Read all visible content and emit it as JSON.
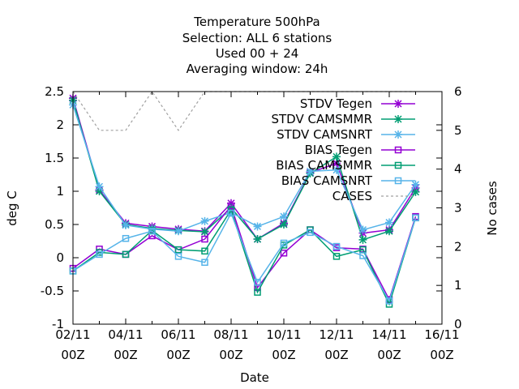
{
  "chart_data": {
    "type": "line",
    "title_lines": [
      "Temperature 500hPa",
      "Selection: ALL      6 stations",
      "Used  00 + 24",
      "Averaging window: 24h"
    ],
    "xlabel": "Date",
    "ylabel": "deg C",
    "y2label": "No cases",
    "ylim": [
      -1,
      2.5
    ],
    "y2lim": [
      0,
      6
    ],
    "yticks": [
      "2.5",
      "2",
      "1.5",
      "1",
      "0.5",
      "0",
      "-0.5",
      "-1"
    ],
    "y2ticks": [
      "6",
      "5",
      "4",
      "3",
      "2",
      "1",
      "0"
    ],
    "xticks": [
      {
        "date": "02/11",
        "hour": "00Z"
      },
      {
        "date": "04/11",
        "hour": "00Z"
      },
      {
        "date": "06/11",
        "hour": "00Z"
      },
      {
        "date": "08/11",
        "hour": "00Z"
      },
      {
        "date": "10/11",
        "hour": "00Z"
      },
      {
        "date": "12/11",
        "hour": "00Z"
      },
      {
        "date": "14/11",
        "hour": "00Z"
      },
      {
        "date": "16/11",
        "hour": "00Z"
      }
    ],
    "x": [
      "02/11",
      "03/11",
      "04/11",
      "05/11",
      "06/11",
      "07/11",
      "08/11",
      "09/11",
      "10/11",
      "11/11",
      "12/11",
      "13/11",
      "14/11",
      "15/11"
    ],
    "grid": false,
    "legend_position": "top-right",
    "series": [
      {
        "name": "STDV Tegen",
        "axis": "y1",
        "color": "#9400d3",
        "marker": "star",
        "dash": "",
        "values": [
          2.4,
          1.02,
          0.52,
          0.47,
          0.43,
          0.4,
          0.82,
          0.28,
          0.52,
          1.28,
          1.42,
          0.37,
          0.42,
          1.05
        ]
      },
      {
        "name": "STDV CAMSMMR",
        "axis": "y1",
        "color": "#009e73",
        "marker": "star",
        "dash": "",
        "values": [
          2.37,
          1.0,
          0.5,
          0.44,
          0.41,
          0.39,
          0.75,
          0.28,
          0.5,
          1.27,
          1.52,
          0.27,
          0.4,
          0.99
        ]
      },
      {
        "name": "STDV CAMSNRT",
        "axis": "y1",
        "color": "#56b4e9",
        "marker": "star",
        "dash": "",
        "values": [
          2.3,
          1.07,
          0.49,
          0.43,
          0.4,
          0.55,
          0.68,
          0.47,
          0.62,
          1.3,
          1.32,
          0.42,
          0.53,
          1.1
        ]
      },
      {
        "name": "BIAS Tegen",
        "axis": "y1",
        "color": "#9400d3",
        "marker": "square",
        "dash": "",
        "values": [
          -0.16,
          0.13,
          0.05,
          0.33,
          0.12,
          0.28,
          0.78,
          -0.45,
          0.07,
          0.42,
          0.15,
          0.13,
          -0.63,
          0.62
        ]
      },
      {
        "name": "BIAS CAMSMMR",
        "axis": "y1",
        "color": "#009e73",
        "marker": "square",
        "dash": "",
        "values": [
          -0.2,
          0.08,
          0.05,
          0.41,
          0.12,
          0.1,
          0.72,
          -0.52,
          0.19,
          0.42,
          0.02,
          0.12,
          -0.7,
          0.6
        ]
      },
      {
        "name": "BIAS CAMSNRT",
        "axis": "y1",
        "color": "#56b4e9",
        "marker": "square",
        "dash": "",
        "values": [
          -0.2,
          0.05,
          0.29,
          0.4,
          0.02,
          -0.07,
          0.67,
          -0.37,
          0.22,
          0.38,
          0.17,
          0.03,
          -0.65,
          0.6
        ]
      },
      {
        "name": "CASES",
        "axis": "y2",
        "color": "#a0a0a0",
        "marker": "none",
        "dash": "3,3",
        "values": [
          6,
          5,
          5,
          6,
          5,
          6,
          6,
          6,
          6,
          6,
          6,
          6,
          6,
          6
        ]
      }
    ]
  }
}
